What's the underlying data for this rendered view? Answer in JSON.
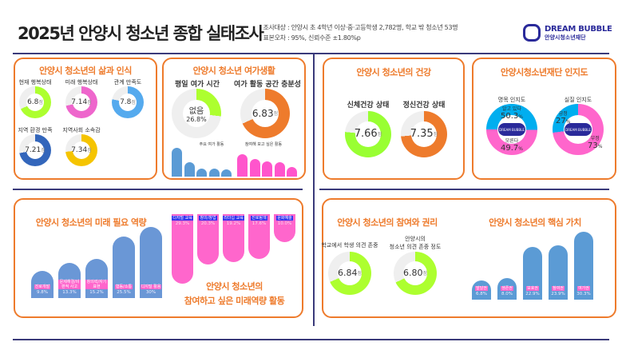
{
  "header": {
    "title": "2025년 안양시 청소년 종합 실태조사",
    "meta": [
      "· 조사대상 : 안양시 초 4학년 이상·중·고등학생 2,782명, 학교 밖 청소년 53명",
      "· 표본오차 : 95%, 신뢰수준 ±1.80%p"
    ],
    "logo": {
      "name": "DREAM BUBBLE",
      "sub": "안양시청소년재단"
    }
  },
  "unit_score": "점",
  "life": {
    "title": "안양시 청소년의 삶과 인식",
    "items": [
      {
        "label": "현재 행복상태",
        "value": 6.8,
        "display": "6.8",
        "color": "#adff2f"
      },
      {
        "label": "미래 행복상태",
        "value": 7.14,
        "display": "7.14",
        "color": "#ee66cc"
      },
      {
        "label": "관계 만족도",
        "value": 7.8,
        "display": "7.8",
        "color": "#55aaee"
      },
      {
        "label": "지역 환경 만족",
        "value": 7.21,
        "display": "7.21",
        "color": "#3366bb"
      },
      {
        "label": "지역사회 소속감",
        "value": 7.34,
        "display": "7.34",
        "color": "#f5c400"
      }
    ]
  },
  "leisure": {
    "title": "안양시 청소년 여가생활",
    "time": {
      "label": "평일 여가 시간",
      "center": "없음",
      "value": 26.8,
      "display": "26.8%",
      "color": "#adff2f"
    },
    "space": {
      "label": "여가 활동 공간 충분성",
      "value": 6.83,
      "display": "6.83",
      "color": "#ee7b2c"
    },
    "main_label": "주요 여가 활동",
    "main": [
      40,
      17,
      8,
      8,
      6
    ],
    "wish_label": "참여해 보고 싶은 활동",
    "wish": [
      30,
      22,
      19,
      17,
      10
    ],
    "color_main": "#5b9bd5",
    "color_wish": "#ff55cc"
  },
  "health": {
    "title": "안양시 청소년의 건강",
    "items": [
      {
        "label": "신체건강 상태",
        "value": 7.66,
        "display": "7.66",
        "color": "#99ff33"
      },
      {
        "label": "정신건강 상태",
        "value": 7.35,
        "display": "7.35",
        "color": "#ee7b2c"
      }
    ]
  },
  "awareness": {
    "title": "안양시청소년재단 인지도",
    "nominal": {
      "label": "명목 인지도",
      "a_label": "알고 있다",
      "a": 50.3,
      "a_display": "50.3",
      "b_label": "모른다",
      "b": 49.7,
      "b_display": "49.7"
    },
    "real": {
      "label": "실질 인지도",
      "a_label": "긍정",
      "a": 27,
      "a_display": "27",
      "b_label": "부정",
      "b": 73,
      "b_display": "73"
    },
    "unit": "%",
    "colors": {
      "a": "#00aeef",
      "b": "#ff66cc"
    },
    "seal": "DREAM BUBBLE"
  },
  "future": {
    "title": "안양시 청소년의 미래 필요 역량",
    "bars": [
      {
        "label": "진로개발",
        "value": 9.8,
        "display": "9.8%"
      },
      {
        "label": "문제해결/비판적 사고",
        "value": 13.3,
        "display": "13.3%"
      },
      {
        "label": "창의력/자기표현",
        "value": 15.2,
        "display": "15.2%"
      },
      {
        "label": "협동/소통",
        "value": 25.5,
        "display": "25.5%"
      },
      {
        "label": "디지털 활용",
        "value": 30,
        "display": "30%"
      }
    ],
    "color": "#6a97d6"
  },
  "activity": {
    "title1": "안양시 청소년의",
    "title2": "참여하고 싶은 미래역량 활동",
    "bars": [
      {
        "label": "디지털 교육",
        "value": 29.3,
        "display": "29.3%"
      },
      {
        "label": "창의/창업",
        "value": 20.3,
        "display": "20.3%"
      },
      {
        "label": "리더십 교육",
        "value": 19.2,
        "display": "19.2%"
      },
      {
        "label": "진로탐색",
        "value": 17.6,
        "display": "17.6%"
      },
      {
        "label": "문화예술",
        "value": 10.0,
        "display": "10.0%"
      }
    ]
  },
  "rights": {
    "title": "안양시 청소년의 참여와 권리",
    "items": [
      {
        "label": "학교에서 학생 의견 존중",
        "value": 6.84,
        "display": "6.84",
        "color": "#adff2f"
      },
      {
        "label": "안양시의\n청소년 의견 존중 정도",
        "value": 6.8,
        "display": "6.80",
        "color": "#adff2f"
      }
    ]
  },
  "values": {
    "title": "안양시 청소년의 핵심 가치",
    "bars": [
      {
        "label": "발달권",
        "value": 6.8,
        "display": "6.8%"
      },
      {
        "label": "생존권",
        "value": 8.0,
        "display": "8.0%"
      },
      {
        "label": "보호권",
        "value": 22.9,
        "display": "22.9%"
      },
      {
        "label": "참여권",
        "value": 23.9,
        "display": "23.9%"
      },
      {
        "label": "여가권",
        "value": 30.3,
        "display": "30.3%"
      }
    ],
    "color": "#5b9bd5"
  }
}
